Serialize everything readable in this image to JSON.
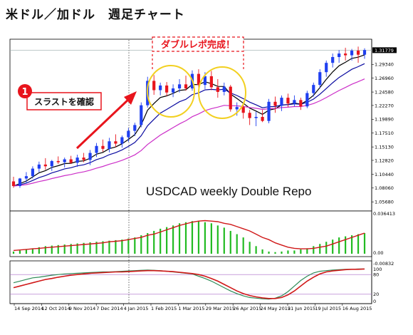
{
  "page_title": "米ドル／加ドル　週足チャート",
  "annotations": {
    "pattern_label": "ダブルレポ完成！",
    "thrust_label": "スラストを確認",
    "thrust_number": "1",
    "chart_caption": "USDCAD  weekly  Double Repo"
  },
  "colors": {
    "bull_candle": "#1f3ff0",
    "bear_candle": "#e8141c",
    "ma_fast": "#000000",
    "ma_mid": "#0a0aa0",
    "ma_slow": "#cc2ec8",
    "histogram": "#22bb22",
    "signal_line": "#d01818",
    "stoch_main": "#2e8b57",
    "stoch_signal": "#d01818",
    "level_line": "#a868c8",
    "highlight_circle": "#f2d020",
    "pattern_box": "#e8141c",
    "arrow": "#e8141c"
  },
  "chart_data": [
    {
      "type": "candlestick",
      "symbol": "USDCAD",
      "timeframe": "weekly",
      "x_tick_labels": [
        "14 Sep 2014",
        "12 Oct 2014",
        "9 Nov 2014",
        "7 Dec 2014",
        "4 Jan 2015",
        "1 Feb 2015",
        "1 Mar 2015",
        "29 Mar 2015",
        "26 Apr 2015",
        "24 May 2015",
        "21 Jun 2015",
        "19 Jul 2015",
        "16 Aug 2015"
      ],
      "y_tick_labels": [
        "1.31779",
        "1.29340",
        "1.26960",
        "1.24580",
        "1.22270",
        "1.19890",
        "1.17510",
        "1.15130",
        "1.12820",
        "1.10440",
        "1.08060",
        "1.05680"
      ],
      "current_price": "1.31779",
      "ylim": [
        1.046,
        1.333
      ],
      "candles": [
        {
          "o": 1.092,
          "h": 1.1,
          "l": 1.081,
          "c": 1.084
        },
        {
          "o": 1.084,
          "h": 1.098,
          "l": 1.081,
          "c": 1.097
        },
        {
          "o": 1.097,
          "h": 1.108,
          "l": 1.089,
          "c": 1.101
        },
        {
          "o": 1.101,
          "h": 1.118,
          "l": 1.097,
          "c": 1.114
        },
        {
          "o": 1.114,
          "h": 1.126,
          "l": 1.108,
          "c": 1.121
        },
        {
          "o": 1.121,
          "h": 1.132,
          "l": 1.112,
          "c": 1.118
        },
        {
          "o": 1.118,
          "h": 1.129,
          "l": 1.11,
          "c": 1.127
        },
        {
          "o": 1.127,
          "h": 1.135,
          "l": 1.122,
          "c": 1.125
        },
        {
          "o": 1.125,
          "h": 1.133,
          "l": 1.116,
          "c": 1.13
        },
        {
          "o": 1.13,
          "h": 1.136,
          "l": 1.122,
          "c": 1.124
        },
        {
          "o": 1.124,
          "h": 1.138,
          "l": 1.117,
          "c": 1.133
        },
        {
          "o": 1.133,
          "h": 1.141,
          "l": 1.125,
          "c": 1.129
        },
        {
          "o": 1.129,
          "h": 1.146,
          "l": 1.12,
          "c": 1.141
        },
        {
          "o": 1.141,
          "h": 1.158,
          "l": 1.134,
          "c": 1.153
        },
        {
          "o": 1.153,
          "h": 1.164,
          "l": 1.143,
          "c": 1.148
        },
        {
          "o": 1.148,
          "h": 1.167,
          "l": 1.142,
          "c": 1.161
        },
        {
          "o": 1.161,
          "h": 1.173,
          "l": 1.151,
          "c": 1.157
        },
        {
          "o": 1.157,
          "h": 1.171,
          "l": 1.15,
          "c": 1.168
        },
        {
          "o": 1.168,
          "h": 1.184,
          "l": 1.16,
          "c": 1.179
        },
        {
          "o": 1.179,
          "h": 1.193,
          "l": 1.17,
          "c": 1.189
        },
        {
          "o": 1.189,
          "h": 1.228,
          "l": 1.185,
          "c": 1.223
        },
        {
          "o": 1.223,
          "h": 1.272,
          "l": 1.219,
          "c": 1.265
        },
        {
          "o": 1.265,
          "h": 1.275,
          "l": 1.241,
          "c": 1.249
        },
        {
          "o": 1.249,
          "h": 1.262,
          "l": 1.24,
          "c": 1.257
        },
        {
          "o": 1.257,
          "h": 1.263,
          "l": 1.239,
          "c": 1.245
        },
        {
          "o": 1.245,
          "h": 1.259,
          "l": 1.237,
          "c": 1.252
        },
        {
          "o": 1.252,
          "h": 1.268,
          "l": 1.245,
          "c": 1.259
        },
        {
          "o": 1.259,
          "h": 1.274,
          "l": 1.248,
          "c": 1.252
        },
        {
          "o": 1.252,
          "h": 1.283,
          "l": 1.248,
          "c": 1.277
        },
        {
          "o": 1.277,
          "h": 1.285,
          "l": 1.252,
          "c": 1.258
        },
        {
          "o": 1.258,
          "h": 1.28,
          "l": 1.251,
          "c": 1.273
        },
        {
          "o": 1.273,
          "h": 1.282,
          "l": 1.249,
          "c": 1.254
        },
        {
          "o": 1.254,
          "h": 1.268,
          "l": 1.236,
          "c": 1.246
        },
        {
          "o": 1.246,
          "h": 1.262,
          "l": 1.24,
          "c": 1.255
        },
        {
          "o": 1.255,
          "h": 1.258,
          "l": 1.212,
          "c": 1.216
        },
        {
          "o": 1.216,
          "h": 1.228,
          "l": 1.205,
          "c": 1.22
        },
        {
          "o": 1.22,
          "h": 1.223,
          "l": 1.2,
          "c": 1.21
        },
        {
          "o": 1.21,
          "h": 1.215,
          "l": 1.189,
          "c": 1.201
        },
        {
          "o": 1.201,
          "h": 1.212,
          "l": 1.187,
          "c": 1.203
        },
        {
          "o": 1.203,
          "h": 1.215,
          "l": 1.194,
          "c": 1.196
        },
        {
          "o": 1.196,
          "h": 1.234,
          "l": 1.192,
          "c": 1.229
        },
        {
          "o": 1.229,
          "h": 1.238,
          "l": 1.21,
          "c": 1.222
        },
        {
          "o": 1.222,
          "h": 1.24,
          "l": 1.213,
          "c": 1.236
        },
        {
          "o": 1.236,
          "h": 1.243,
          "l": 1.22,
          "c": 1.226
        },
        {
          "o": 1.226,
          "h": 1.24,
          "l": 1.221,
          "c": 1.232
        },
        {
          "o": 1.232,
          "h": 1.236,
          "l": 1.215,
          "c": 1.221
        },
        {
          "o": 1.221,
          "h": 1.248,
          "l": 1.218,
          "c": 1.244
        },
        {
          "o": 1.244,
          "h": 1.262,
          "l": 1.238,
          "c": 1.258
        },
        {
          "o": 1.258,
          "h": 1.285,
          "l": 1.252,
          "c": 1.28
        },
        {
          "o": 1.28,
          "h": 1.3,
          "l": 1.272,
          "c": 1.296
        },
        {
          "o": 1.296,
          "h": 1.312,
          "l": 1.288,
          "c": 1.306
        },
        {
          "o": 1.306,
          "h": 1.318,
          "l": 1.296,
          "c": 1.312
        },
        {
          "o": 1.312,
          "h": 1.322,
          "l": 1.3,
          "c": 1.309
        },
        {
          "o": 1.309,
          "h": 1.32,
          "l": 1.3,
          "c": 1.317
        },
        {
          "o": 1.317,
          "h": 1.324,
          "l": 1.296,
          "c": 1.31
        },
        {
          "o": 1.31,
          "h": 1.321,
          "l": 1.303,
          "c": 1.318
        }
      ]
    },
    {
      "type": "bar",
      "indicator": "MACD",
      "y_tick_labels": [
        "0.036413",
        "0.00"
      ],
      "ylim": [
        0,
        0.0367
      ],
      "values": [
        0.002,
        0.003,
        0.004,
        0.005,
        0.006,
        0.007,
        0.0075,
        0.008,
        0.0085,
        0.009,
        0.0095,
        0.01,
        0.0105,
        0.011,
        0.0115,
        0.012,
        0.0125,
        0.013,
        0.014,
        0.015,
        0.017,
        0.019,
        0.021,
        0.023,
        0.0245,
        0.026,
        0.028,
        0.029,
        0.03,
        0.03,
        0.029,
        0.028,
        0.026,
        0.024,
        0.021,
        0.018,
        0.015,
        0.011,
        0.007,
        0.004,
        0.002,
        0.0015,
        0.002,
        0.003,
        0.003,
        0.004,
        0.005,
        0.007,
        0.009,
        0.011,
        0.013,
        0.015,
        0.016,
        0.017,
        0.018,
        0.019
      ],
      "signal": [
        0.003,
        0.0035,
        0.004,
        0.0045,
        0.005,
        0.0055,
        0.006,
        0.0065,
        0.007,
        0.0075,
        0.008,
        0.0085,
        0.009,
        0.0095,
        0.01,
        0.011,
        0.0115,
        0.012,
        0.013,
        0.014,
        0.015,
        0.017,
        0.018,
        0.02,
        0.022,
        0.024,
        0.026,
        0.0275,
        0.029,
        0.03,
        0.0305,
        0.03,
        0.0295,
        0.028,
        0.027,
        0.025,
        0.023,
        0.021,
        0.018,
        0.015,
        0.013,
        0.01,
        0.008,
        0.006,
        0.005,
        0.0045,
        0.0045,
        0.005,
        0.006,
        0.007,
        0.009,
        0.011,
        0.013,
        0.015,
        0.017,
        0.019
      ]
    },
    {
      "type": "line",
      "indicator": "Stochastic",
      "y_tick_labels": [
        "-0.00832",
        "100",
        "80",
        "20",
        "0"
      ],
      "levels": [
        80,
        20
      ],
      "ylim": [
        0,
        100
      ],
      "series": [
        {
          "values": [
            55,
            60,
            65,
            70,
            72,
            75,
            78,
            80,
            82,
            83,
            84,
            85,
            86,
            87,
            88,
            88,
            89,
            90,
            91,
            92,
            93,
            94,
            93,
            92,
            90,
            88,
            86,
            84,
            82,
            75,
            68,
            60,
            50,
            40,
            30,
            22,
            15,
            10,
            8,
            6,
            5,
            8,
            15,
            28,
            45,
            62,
            75,
            85,
            90,
            92,
            94,
            95,
            96,
            96,
            97,
            97
          ]
        },
        {
          "values": [
            40,
            45,
            50,
            55,
            60,
            65,
            68,
            72,
            75,
            78,
            80,
            82,
            84,
            85,
            86,
            87,
            88,
            88,
            89,
            90,
            91,
            92,
            92,
            91,
            90,
            89,
            87,
            85,
            83,
            80,
            75,
            68,
            60,
            50,
            40,
            30,
            22,
            16,
            12,
            9,
            7,
            7,
            10,
            18,
            30,
            45,
            60,
            72,
            82,
            88,
            91,
            93,
            95,
            96,
            96,
            97
          ]
        }
      ]
    }
  ]
}
